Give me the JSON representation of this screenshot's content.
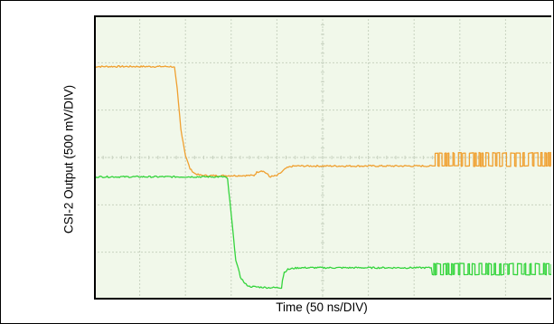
{
  "chart_data": {
    "type": "line",
    "title": "",
    "xlabel": "Time (50 ns/DIV)",
    "ylabel": "CSI-2 Output (500 mV/DIV)",
    "x_unit": "ns",
    "y_unit": "mV",
    "xlim": [
      0,
      500
    ],
    "ylim": [
      -1250,
      1250
    ],
    "grid": true,
    "legend": "none",
    "colors": {
      "background": "#f1f8ea",
      "grid": "#c8d2c0",
      "frame": "#000000"
    },
    "series": [
      {
        "color": "#f0a030",
        "x": [
          0,
          85,
          88,
          91,
          95,
          100,
          105,
          110,
          115,
          120,
          125,
          150,
          175,
          178,
          183,
          186,
          190,
          192,
          200,
          205,
          210,
          215,
          220,
          250,
          300,
          370,
          500
        ],
        "y": [
          800,
          800,
          790,
          600,
          250,
          20,
          -100,
          -140,
          -155,
          -158,
          -160,
          -160,
          -158,
          -130,
          -115,
          -125,
          -150,
          -170,
          -160,
          -130,
          -95,
          -80,
          -75,
          -75,
          -75,
          -75,
          -75
        ],
        "note_dense": {
          "x_start": 370,
          "x_end": 500,
          "low": -75,
          "high": 40
        }
      },
      {
        "color": "#34d43c",
        "x": [
          0,
          143,
          146,
          150,
          155,
          160,
          165,
          170,
          180,
          190,
          200,
          205,
          206,
          208,
          212,
          218,
          225,
          240,
          300,
          370,
          500
        ],
        "y": [
          -170,
          -170,
          -190,
          -500,
          -900,
          -1050,
          -1110,
          -1135,
          -1140,
          -1145,
          -1145,
          -1145,
          -1080,
          -1010,
          -985,
          -975,
          -970,
          -970,
          -970,
          -970,
          -970
        ],
        "note_dense": {
          "x_start": 370,
          "x_end": 500,
          "low": -1030,
          "high": -935
        }
      }
    ]
  }
}
